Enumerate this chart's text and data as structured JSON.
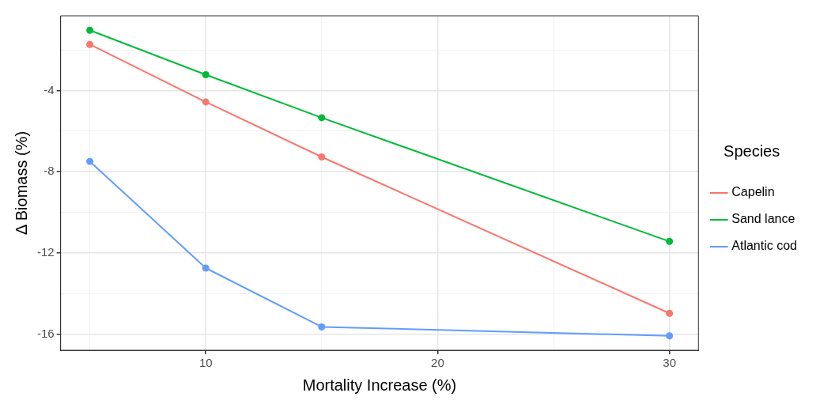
{
  "chart_data": {
    "type": "line",
    "xlabel": "Mortality Increase (%)",
    "ylabel": "Δ Biomass (%)",
    "legend_title": "Species",
    "legend": "right",
    "grid": true,
    "marker": "circle",
    "line_style": "solid",
    "x": [
      5,
      10,
      15,
      30
    ],
    "xlim": [
      3.74,
      31.25
    ],
    "xticks": [
      {
        "value": 5,
        "label": null
      },
      10,
      {
        "value": 15,
        "label": null
      },
      20,
      {
        "value": 25,
        "label": null
      },
      30
    ],
    "ylim": [
      -16.79,
      -0.32
    ],
    "yticks": [
      {
        "value": -2,
        "label": null
      },
      -4,
      {
        "value": -6,
        "label": null
      },
      -8,
      {
        "value": -10,
        "label": null
      },
      -12,
      {
        "value": -14,
        "label": null
      },
      -16
    ],
    "series": [
      {
        "name": "Capelin",
        "color": "#f8766d",
        "values": [
          -1.73,
          -4.56,
          -7.27,
          -14.97
        ]
      },
      {
        "name": "Sand lance",
        "color": "#00ba38",
        "values": [
          -1.03,
          -3.22,
          -5.34,
          -11.43
        ]
      },
      {
        "name": "Atlantic cod",
        "color": "#619cff",
        "values": [
          -7.49,
          -12.74,
          -15.64,
          -16.08
        ]
      }
    ]
  }
}
